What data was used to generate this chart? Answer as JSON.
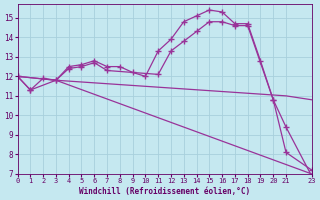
{
  "xlabel": "Windchill (Refroidissement éolien,°C)",
  "background_color": "#c5e8f0",
  "grid_color": "#a8d0dc",
  "line_color": "#993399",
  "xlim": [
    0,
    23
  ],
  "ylim": [
    7,
    15.7
  ],
  "xticks": [
    0,
    1,
    2,
    3,
    4,
    5,
    6,
    7,
    8,
    9,
    10,
    11,
    12,
    13,
    14,
    15,
    16,
    17,
    18,
    19,
    20,
    21,
    23
  ],
  "yticks": [
    7,
    8,
    9,
    10,
    11,
    12,
    13,
    14,
    15
  ],
  "series": [
    {
      "comment": "top line - rises to peak ~15.4 at x=15, then drops sharply to 12.8@19, 10.8@20, 9.4@21, 6.9@23",
      "x": [
        0,
        1,
        2,
        3,
        4,
        5,
        6,
        7,
        8,
        9,
        10,
        11,
        12,
        13,
        14,
        15,
        16,
        17,
        18,
        19,
        20,
        21,
        23
      ],
      "y": [
        12.0,
        11.3,
        11.9,
        11.8,
        12.5,
        12.6,
        12.8,
        12.5,
        12.5,
        12.2,
        12.0,
        13.3,
        13.9,
        14.8,
        15.1,
        15.4,
        15.3,
        14.7,
        14.7,
        12.8,
        10.8,
        9.4,
        6.9
      ]
    },
    {
      "x": [
        0,
        1,
        3,
        4,
        5,
        6,
        7,
        11,
        12,
        13,
        14,
        15,
        16,
        17,
        18,
        20,
        21,
        23
      ],
      "y": [
        12.0,
        11.3,
        11.8,
        12.4,
        12.5,
        12.7,
        12.3,
        12.1,
        13.3,
        13.8,
        14.3,
        14.8,
        14.8,
        14.6,
        14.6,
        10.8,
        8.1,
        7.2
      ]
    },
    {
      "x": [
        0,
        3,
        21,
        23
      ],
      "y": [
        12.0,
        11.8,
        11.0,
        10.8
      ]
    },
    {
      "x": [
        0,
        3,
        23
      ],
      "y": [
        12.0,
        11.8,
        7.0
      ]
    }
  ]
}
